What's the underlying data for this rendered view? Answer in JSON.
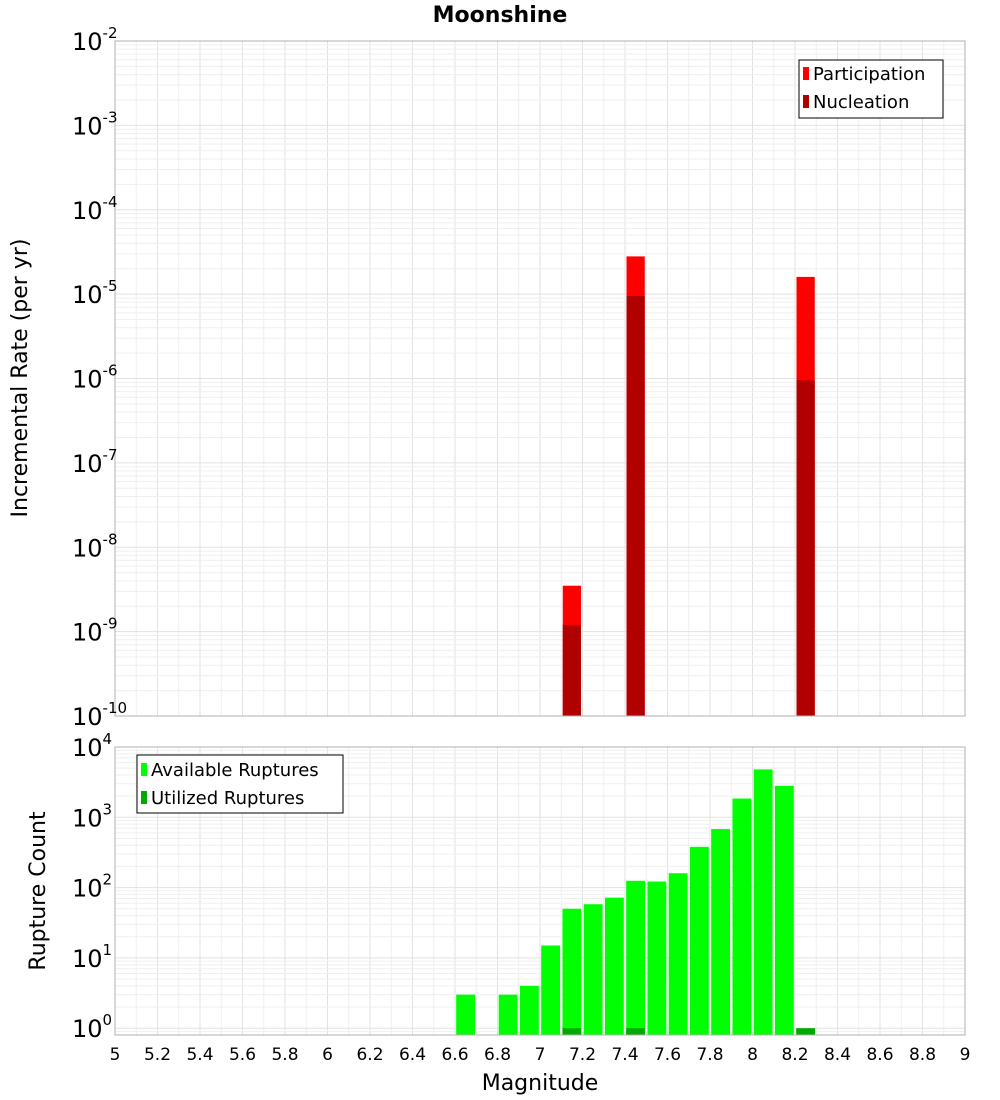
{
  "chart_data": [
    {
      "type": "bar",
      "title": "Moonshine",
      "xlabel": "",
      "ylabel": "Incremental Rate (per yr)",
      "yscale": "log",
      "ylim": [
        1e-10,
        0.01
      ],
      "xlim": [
        5,
        9
      ],
      "y_ticks": [
        {
          "base": "10",
          "exp": "-10"
        },
        {
          "base": "10",
          "exp": "-9"
        },
        {
          "base": "10",
          "exp": "-8"
        },
        {
          "base": "10",
          "exp": "-7"
        },
        {
          "base": "10",
          "exp": "-6"
        },
        {
          "base": "10",
          "exp": "-5"
        },
        {
          "base": "10",
          "exp": "-4"
        },
        {
          "base": "10",
          "exp": "-3"
        },
        {
          "base": "10",
          "exp": "-2"
        }
      ],
      "legend": {
        "position": "top-right"
      },
      "grid": true,
      "series": [
        {
          "name": "Participation",
          "color": "#ff0000",
          "x": [
            7.15,
            7.45,
            8.25
          ],
          "values": [
            3.5e-09,
            2.8e-05,
            1.6e-05
          ]
        },
        {
          "name": "Nucleation",
          "color": "#b00000",
          "x": [
            7.15,
            7.45,
            8.25
          ],
          "values": [
            1.2e-09,
            9.5e-06,
            9.5e-07
          ]
        }
      ]
    },
    {
      "type": "bar",
      "title": "",
      "xlabel": "Magnitude",
      "ylabel": "Rupture Count",
      "yscale": "log",
      "ylim": [
        0.8,
        10000
      ],
      "xlim": [
        5,
        9
      ],
      "y_ticks": [
        {
          "value": 1,
          "base": "10",
          "exp": "0"
        },
        {
          "value": 10,
          "base": "10",
          "exp": "1"
        },
        {
          "value": 100,
          "base": "10",
          "exp": "2"
        },
        {
          "value": 1000,
          "base": "10",
          "exp": "3"
        },
        {
          "value": 10000,
          "base": "10",
          "exp": "4"
        }
      ],
      "x_ticks": [
        "5",
        "5.2",
        "5.4",
        "5.6",
        "5.8",
        "6",
        "6.2",
        "6.4",
        "6.6",
        "6.8",
        "7",
        "7.2",
        "7.4",
        "7.6",
        "7.8",
        "8",
        "8.2",
        "8.4",
        "8.6",
        "8.8",
        "9"
      ],
      "legend": {
        "position": "top-left"
      },
      "grid": true,
      "series": [
        {
          "name": "Available Ruptures",
          "color": "#00ff00",
          "x": [
            6.65,
            6.85,
            6.95,
            7.05,
            7.15,
            7.25,
            7.35,
            7.45,
            7.55,
            7.65,
            7.75,
            7.85,
            7.95,
            8.05,
            8.15
          ],
          "values": [
            3,
            3,
            4,
            15,
            50,
            58,
            72,
            125,
            122,
            160,
            380,
            680,
            1850,
            4800,
            2800
          ]
        },
        {
          "name": "Utilized Ruptures",
          "color": "#00aa00",
          "x": [
            7.15,
            7.45,
            8.25
          ],
          "values": [
            1,
            1,
            1
          ]
        }
      ]
    }
  ]
}
